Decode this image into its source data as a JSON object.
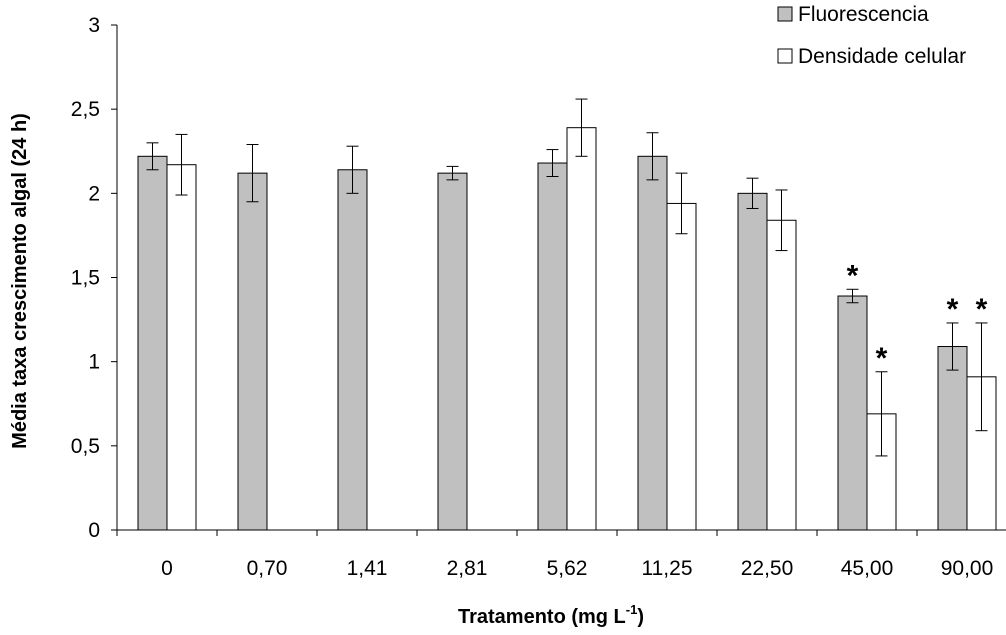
{
  "chart_data": {
    "type": "bar",
    "categories": [
      "0",
      "0,70",
      "1,41",
      "2,81",
      "5,62",
      "11,25",
      "22,50",
      "45,00",
      "90,00"
    ],
    "series": [
      {
        "name": "Fluorescencia",
        "color": "#c0c0c0",
        "values": [
          2.22,
          2.12,
          2.14,
          2.12,
          2.18,
          2.22,
          2.0,
          1.39,
          1.09
        ],
        "errors": [
          0.08,
          0.17,
          0.14,
          0.04,
          0.08,
          0.14,
          0.09,
          0.04,
          0.14
        ],
        "significant": [
          false,
          false,
          false,
          false,
          false,
          false,
          false,
          true,
          true
        ]
      },
      {
        "name": "Densidade celular",
        "color": "#ffffff",
        "values": [
          2.17,
          null,
          null,
          null,
          2.39,
          1.94,
          1.84,
          0.69,
          0.91
        ],
        "errors": [
          0.18,
          null,
          null,
          null,
          0.17,
          0.18,
          0.18,
          0.25,
          0.32
        ],
        "significant": [
          false,
          false,
          false,
          false,
          false,
          false,
          false,
          true,
          true
        ]
      }
    ],
    "yticks": [
      "0",
      "0,5",
      "1",
      "1,5",
      "2",
      "2,5",
      "3"
    ],
    "ylim": [
      0,
      3
    ],
    "xlabel_main": "Tratamento (mg L",
    "xlabel_sup": "-1",
    "xlabel_end": ")",
    "ylabel": "Média taxa crescimento algal (24 h)",
    "significance_marker": "*",
    "legend_position": "top-right",
    "grid": false
  }
}
